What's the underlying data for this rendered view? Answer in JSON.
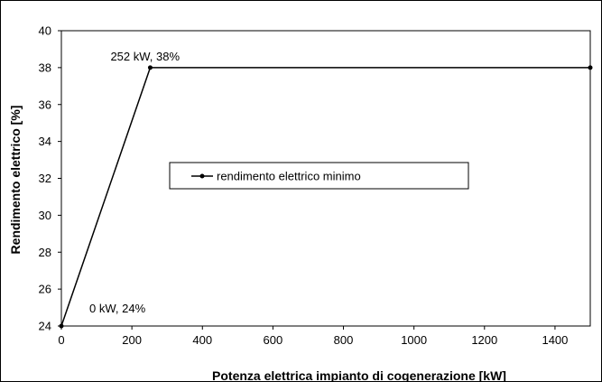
{
  "chart_data": {
    "type": "line",
    "title": "",
    "xlabel": "Potenza elettrica impianto di cogenerazione [kW]",
    "ylabel": "Rendimento elettrico [%]",
    "xlim": [
      0,
      1500
    ],
    "ylim": [
      24,
      40
    ],
    "xticks": [
      0,
      200,
      400,
      600,
      800,
      1000,
      1200,
      1400
    ],
    "yticks": [
      24,
      26,
      28,
      30,
      32,
      34,
      36,
      38,
      40
    ],
    "grid": false,
    "legend_position": "center",
    "series": [
      {
        "name": "rendimento elettrico minimo",
        "color": "#000000",
        "marker": "circle",
        "x": [
          0,
          252,
          1500
        ],
        "y": [
          24,
          38,
          38
        ]
      }
    ],
    "annotations": [
      {
        "text": "252 kW, 38%",
        "x": 252,
        "y": 38
      },
      {
        "text": "0 kW, 24%",
        "x": 0,
        "y": 24
      }
    ]
  }
}
